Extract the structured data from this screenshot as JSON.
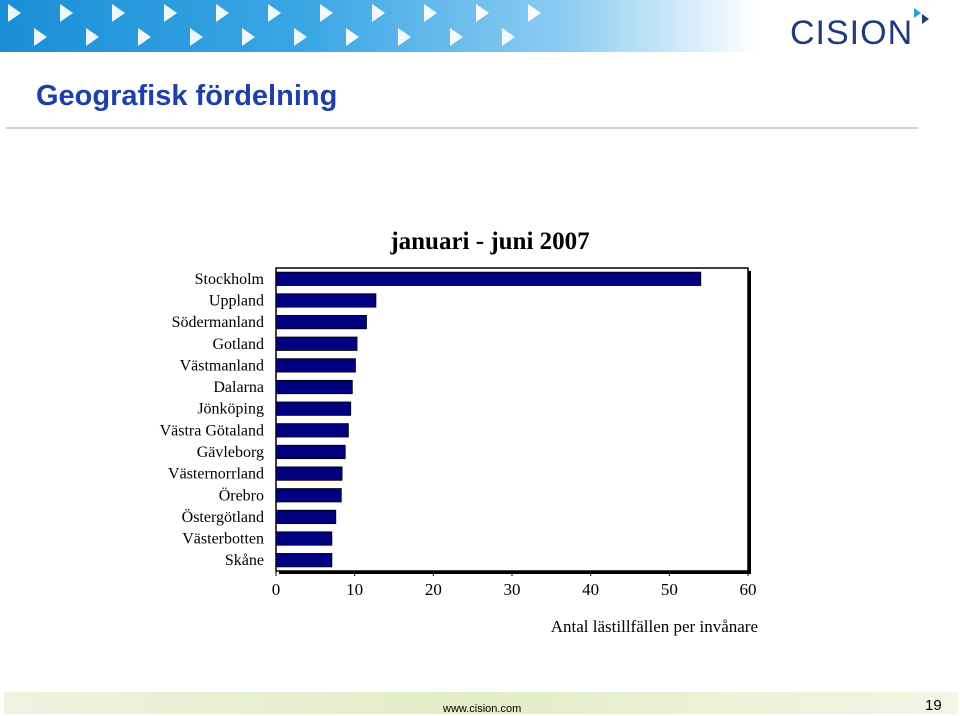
{
  "header": {
    "logo_text": "CISION",
    "title": "Geografisk fördelning"
  },
  "colors": {
    "bar_fill": "#000080",
    "title_blue": "#1f3fa8",
    "banner_blue": "#1a8fd6",
    "logo_navy": "#1f3b7a"
  },
  "chart_data": {
    "type": "bar",
    "orientation": "horizontal",
    "title": "januari - juni 2007",
    "xlabel": "Antal lästillfällen per invånare",
    "ylabel": "",
    "xlim": [
      0,
      60
    ],
    "xticks": [
      0,
      10,
      20,
      30,
      40,
      50,
      60
    ],
    "grid": false,
    "categories": [
      "Stockholm",
      "Uppland",
      "Södermanland",
      "Gotland",
      "Västmanland",
      "Dalarna",
      "Jönköping",
      "Västra Götaland",
      "Gävleborg",
      "Västernorrland",
      "Örebro",
      "Östergötland",
      "Västerbotten",
      "Skåne"
    ],
    "values": [
      54,
      12.7,
      11.5,
      10.3,
      10.1,
      9.7,
      9.5,
      9.2,
      8.8,
      8.4,
      8.3,
      7.6,
      7.1,
      7.1
    ]
  },
  "footer": {
    "url": "www.cision.com",
    "page_number": "19"
  }
}
